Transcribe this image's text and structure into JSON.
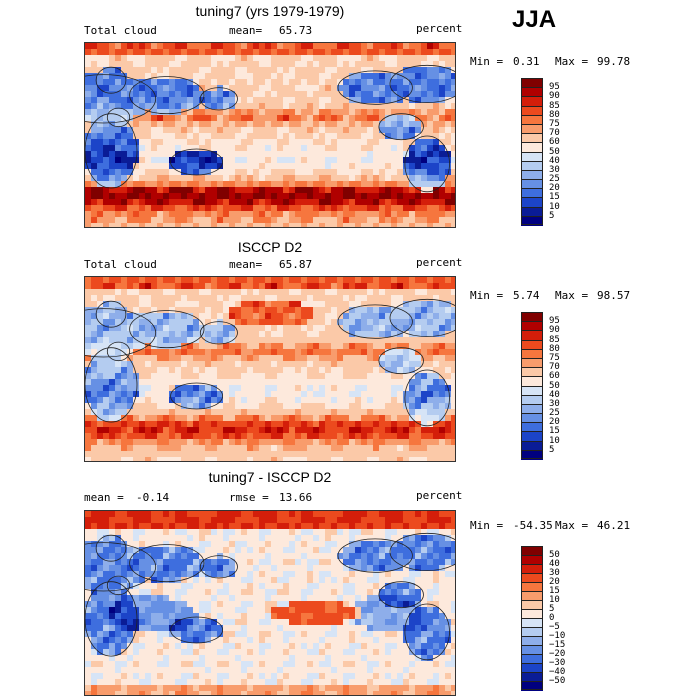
{
  "season": "JJA",
  "chart_data": [
    {
      "type": "heatmap",
      "title": "tuning7 (yrs 1979-1979)",
      "variable": "Total cloud",
      "stat_label": "mean=",
      "stat_value": "65.73",
      "units": "percent",
      "min_label": "Min =",
      "min_value": "0.31",
      "max_label": "Max =",
      "max_value": "99.78",
      "levels": [
        95,
        90,
        85,
        80,
        75,
        70,
        60,
        50,
        40,
        30,
        25,
        20,
        15,
        10,
        5
      ],
      "colors": [
        "#800000",
        "#b00000",
        "#d41e0a",
        "#ec4a1e",
        "#f6763e",
        "#f89c6c",
        "#fbc9a8",
        "#fde9dc",
        "#d6e4f6",
        "#b4ccf0",
        "#8eaeea",
        "#6690e4",
        "#3e6ede",
        "#1c44c8",
        "#0a1c96",
        "#000080"
      ],
      "pattern": "model"
    },
    {
      "type": "heatmap",
      "title": "ISCCP D2",
      "variable": "Total cloud",
      "stat_label": "mean=",
      "stat_value": "65.87",
      "units": "percent",
      "min_label": "Min =",
      "min_value": "5.74",
      "max_label": "Max =",
      "max_value": "98.57",
      "levels": [
        95,
        90,
        85,
        80,
        75,
        70,
        60,
        50,
        40,
        30,
        25,
        20,
        15,
        10,
        5
      ],
      "colors": [
        "#800000",
        "#b00000",
        "#d41e0a",
        "#ec4a1e",
        "#f6763e",
        "#f89c6c",
        "#fbc9a8",
        "#fde9dc",
        "#d6e4f6",
        "#b4ccf0",
        "#8eaeea",
        "#6690e4",
        "#3e6ede",
        "#1c44c8",
        "#0a1c96",
        "#000080"
      ],
      "pattern": "obs"
    },
    {
      "type": "heatmap",
      "title": "tuning7 - ISCCP D2",
      "variable": "",
      "stat_label": "mean =",
      "stat_value": "-0.14",
      "rmse_label": "rmse =",
      "rmse_value": "13.66",
      "units": "percent",
      "min_label": "Min =",
      "min_value": "-54.35",
      "max_label": "Max =",
      "max_value": "46.21",
      "levels": [
        50,
        40,
        30,
        20,
        15,
        10,
        5,
        0,
        -5,
        -10,
        -15,
        -20,
        -30,
        -40,
        -50
      ],
      "colors": [
        "#800000",
        "#b00000",
        "#d41e0a",
        "#ec4a1e",
        "#f6763e",
        "#f89c6c",
        "#fbc9a8",
        "#fde9dc",
        "#d6e4f6",
        "#b4ccf0",
        "#8eaeea",
        "#6690e4",
        "#3e6ede",
        "#1c44c8",
        "#0a1c96",
        "#000080"
      ],
      "pattern": "diff"
    }
  ]
}
